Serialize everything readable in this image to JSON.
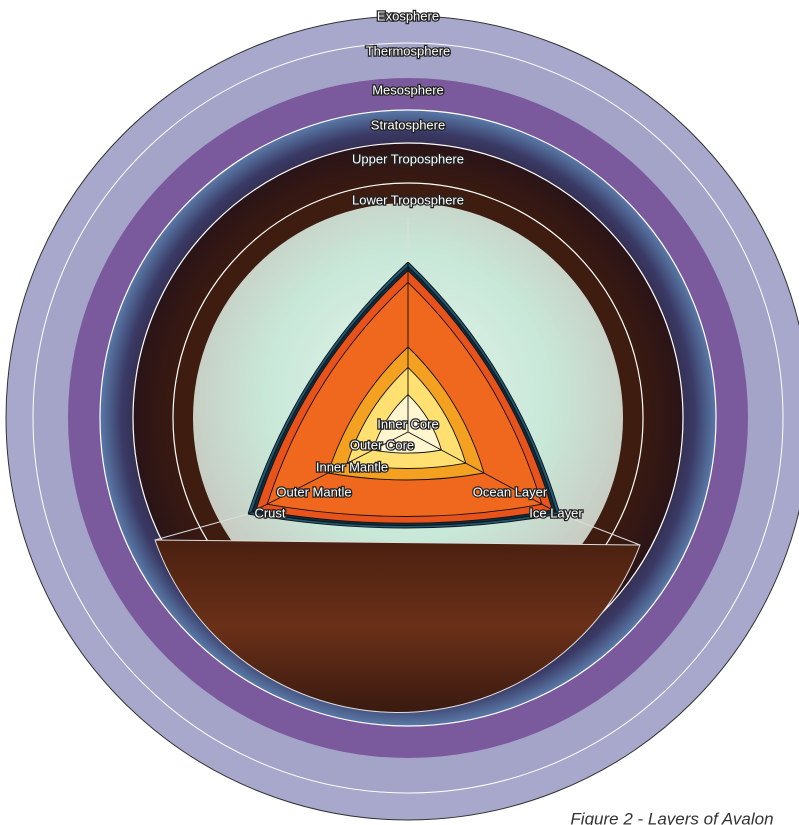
{
  "atmosphere_layers": [
    "Exosphere",
    "Thermosphere",
    "Mesosphere",
    "Stratosphere",
    "Upper Troposphere",
    "Lower Troposphere"
  ],
  "interior_layers": [
    "Inner Core",
    "Outer Core",
    "Inner Mantle",
    "Outer Mantle",
    "Crust",
    "Ocean Layer",
    "Ice Layer"
  ],
  "caption": "Figure 2 - Layers of Avalon"
}
